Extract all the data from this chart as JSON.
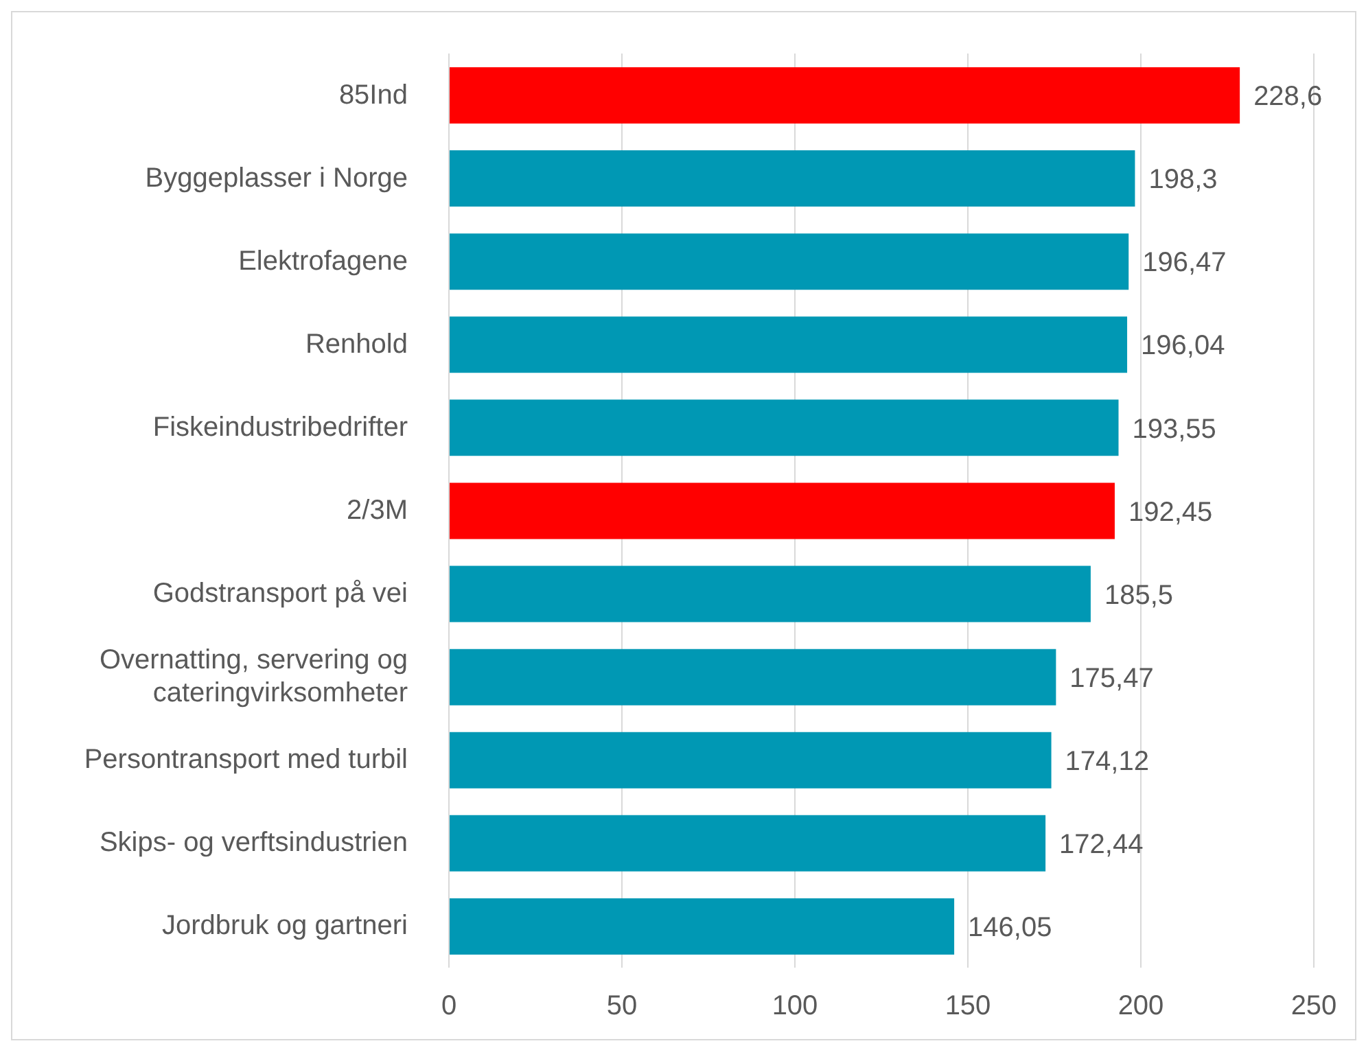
{
  "chart_data": {
    "type": "bar",
    "orientation": "horizontal",
    "categories": [
      "85Ind",
      "Byggeplasser i Norge",
      "Elektrofagene",
      "Renhold",
      "Fiskeindustribedrifter",
      "2/3M",
      "Godstransport på vei",
      "Overnatting, servering og cateringvirksomheter",
      "Persontransport med turbil",
      "Skips- og verftsindustrien",
      "Jordbruk og gartneri"
    ],
    "values": [
      228.6,
      198.3,
      196.47,
      196.04,
      193.55,
      192.45,
      185.5,
      175.47,
      174.12,
      172.44,
      146.05
    ],
    "value_labels": [
      "228,6",
      "198,3",
      "196,47",
      "196,04",
      "193,55",
      "192,45",
      "185,5",
      "175,47",
      "174,12",
      "172,44",
      "146,05"
    ],
    "colors": [
      "#ff0000",
      "#0098b4",
      "#0098b4",
      "#0098b4",
      "#0098b4",
      "#ff0000",
      "#0098b4",
      "#0098b4",
      "#0098b4",
      "#0098b4",
      "#0098b4"
    ],
    "xlim": [
      0,
      250
    ],
    "xticks": [
      0,
      50,
      100,
      150,
      200,
      250
    ],
    "grid": "x",
    "legend": false
  }
}
